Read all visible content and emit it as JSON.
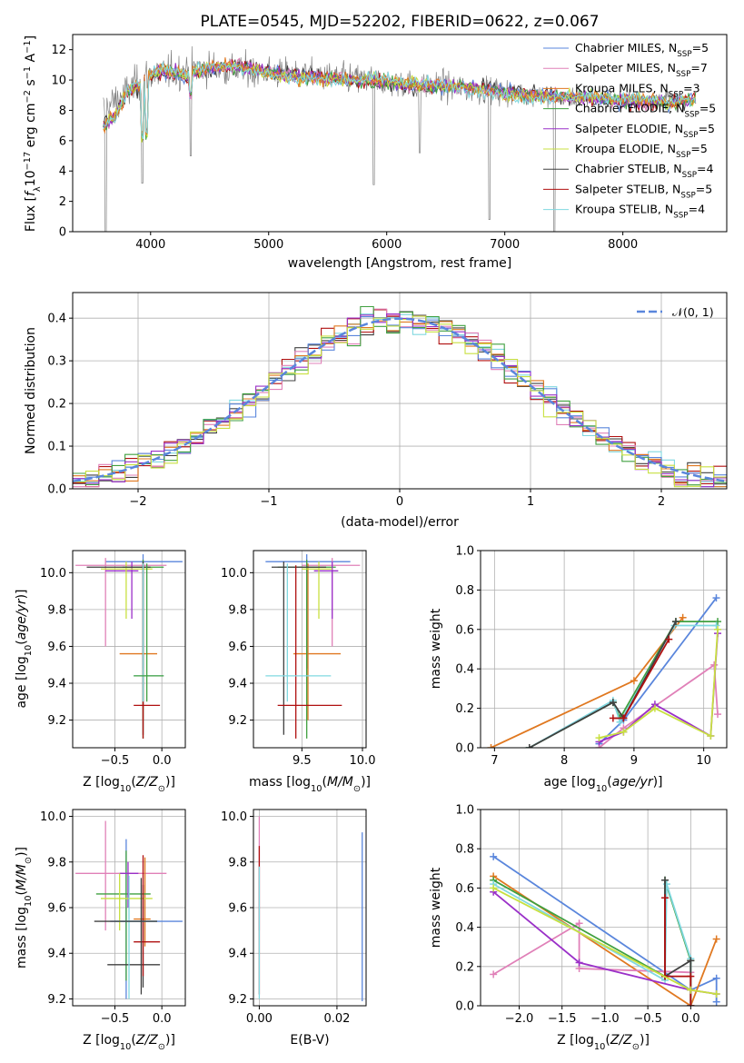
{
  "title": "PLATE=0545, MJD=52202, FIBERID=0622, z=0.067",
  "colors": {
    "data": "#808080",
    "c0": "#5a86dc",
    "c1": "#e080b8",
    "c2": "#e07820",
    "c3": "#40a040",
    "c4": "#9a30c8",
    "c5": "#c8e040",
    "c6": "#404040",
    "c7": "#b01010",
    "c8": "#80d8e0",
    "normal": "#5a86dc",
    "grid": "#b0b0b0"
  },
  "models": [
    {
      "name": "Chabrier MILES",
      "nssp": "5"
    },
    {
      "name": "Salpeter MILES",
      "nssp": "7"
    },
    {
      "name": "Kroupa MILES",
      "nssp": "3"
    },
    {
      "name": "Chabrier ELODIE",
      "nssp": "5"
    },
    {
      "name": "Salpeter ELODIE",
      "nssp": "5"
    },
    {
      "name": "Kroupa ELODIE",
      "nssp": "5"
    },
    {
      "name": "Chabrier STELIB",
      "nssp": "4"
    },
    {
      "name": "Salpeter STELIB",
      "nssp": "5"
    },
    {
      "name": "Kroupa STELIB",
      "nssp": "4"
    }
  ],
  "chart_data": [
    {
      "id": "spectrum",
      "type": "line",
      "xlabel": "wavelength [Angstrom, rest frame]",
      "ylabel": "Flux [f_λ10^-17 erg cm^-2 s^-1 A^-1]",
      "xlim": [
        3340,
        8880
      ],
      "ylim": [
        0,
        13
      ],
      "xticks": [
        4000,
        5000,
        6000,
        7000,
        8000
      ],
      "yticks": [
        0,
        2,
        4,
        6,
        8,
        10,
        12
      ],
      "grid": false,
      "legend": "top-right",
      "model_continuum": {
        "x": [
          3600,
          3700,
          3800,
          3900,
          4000,
          4100,
          4200,
          4300,
          4400,
          4500,
          4600,
          4700,
          4800,
          4900,
          5000,
          5200,
          5400,
          5600,
          5800,
          6000,
          6200,
          6400,
          6600,
          6800,
          7000,
          7200,
          7400,
          7600,
          7800,
          8000,
          8200,
          8400,
          8600
        ],
        "y": [
          7.0,
          7.6,
          9.2,
          9.6,
          10.4,
          10.6,
          10.5,
          10.2,
          10.6,
          10.8,
          10.9,
          10.9,
          10.8,
          10.7,
          10.5,
          10.3,
          10.2,
          10.0,
          10.0,
          9.9,
          9.7,
          9.6,
          9.6,
          9.4,
          9.2,
          9.0,
          8.9,
          8.9,
          8.8,
          8.6,
          8.6,
          8.5,
          8.7
        ]
      },
      "observed": {
        "x_range": [
          3600,
          8450
        ],
        "level": [
          [
            3600,
            8.0
          ],
          [
            4000,
            10.4
          ],
          [
            4500,
            10.8
          ],
          [
            5000,
            10.5
          ],
          [
            6000,
            9.9
          ],
          [
            7000,
            9.2
          ],
          [
            7500,
            8.8
          ]
        ],
        "noise_sd": [
          [
            3600,
            1.4
          ],
          [
            5000,
            1.1
          ],
          [
            6000,
            1.1
          ],
          [
            7000,
            1.0
          ],
          [
            7500,
            0.6
          ]
        ],
        "dips": [
          [
            3620,
            0.0
          ],
          [
            3930,
            3.2
          ],
          [
            4340,
            5.0
          ],
          [
            5890,
            3.1
          ],
          [
            6280,
            5.2
          ],
          [
            6870,
            0.8
          ],
          [
            7420,
            0.0
          ]
        ]
      }
    },
    {
      "id": "residuals",
      "type": "histogram",
      "xlabel": "(data-model)/error",
      "ylabel": "Normed distribution",
      "xlim": [
        -2.5,
        2.5
      ],
      "ylim": [
        0,
        0.46
      ],
      "xticks": [
        -2,
        -1,
        0,
        1,
        2
      ],
      "yticks": [
        0.0,
        0.1,
        0.2,
        0.3,
        0.4
      ],
      "grid": true,
      "legend": "top-right",
      "normal_label": "𝒩(0, 1)",
      "bin_width": 0.1
    },
    {
      "id": "age-vs-Z",
      "type": "scatter",
      "xlabel": "Z [log10(Z/Z⊙)]",
      "ylabel": "age [log10(age/yr)]",
      "xlim": [
        -0.95,
        0.25
      ],
      "ylim": [
        9.05,
        10.12
      ],
      "xticks": [
        -0.5,
        0.0
      ],
      "yticks": [
        9.2,
        9.4,
        9.6,
        9.8,
        10.0
      ],
      "grid": true,
      "points": [
        {
          "c": 0,
          "x": -0.2,
          "xe": [
            -0.6,
            0.22
          ],
          "y": 10.06,
          "ye": [
            9.48,
            10.1
          ]
        },
        {
          "c": 1,
          "x": -0.6,
          "xe": [
            -0.92,
            0.05
          ],
          "y": 10.04,
          "ye": [
            9.6,
            10.08
          ]
        },
        {
          "c": 2,
          "x": -0.2,
          "xe": [
            -0.45,
            -0.05
          ],
          "y": 9.56,
          "ye": [
            9.2,
            10.05
          ]
        },
        {
          "c": 3,
          "x": -0.2,
          "xe": [
            -0.42,
            0.02
          ],
          "y": 10.03,
          "ye": [
            9.1,
            10.07
          ]
        },
        {
          "c": 4,
          "x": -0.32,
          "xe": [
            -0.6,
            -0.25
          ],
          "y": 10.01,
          "ye": [
            9.75,
            10.06
          ]
        },
        {
          "c": 5,
          "x": -0.38,
          "xe": [
            -0.65,
            -0.1
          ],
          "y": 10.02,
          "ye": [
            9.75,
            10.06
          ]
        },
        {
          "c": 6,
          "x": -0.2,
          "xe": [
            -0.8,
            -0.12
          ],
          "y": 10.03,
          "ye": [
            9.12,
            10.06
          ]
        },
        {
          "c": 7,
          "x": -0.2,
          "xe": [
            -0.3,
            -0.02
          ],
          "y": 9.28,
          "ye": [
            9.1,
            10.04
          ]
        },
        {
          "c": 8,
          "x": -0.2,
          "xe": [
            -0.3,
            0.02
          ],
          "y": 9.44,
          "ye": [
            9.3,
            10.05
          ]
        },
        {
          "c": 3,
          "x": -0.16,
          "xe": [
            -0.3,
            0.02
          ],
          "y": 9.44,
          "ye": [
            9.3,
            10.05
          ]
        }
      ]
    },
    {
      "id": "age-vs-mass",
      "type": "scatter",
      "xlabel": "mass [log10(M/M⊙)]",
      "ylabel": "",
      "xlim": [
        9.1,
        10.03
      ],
      "ylim": [
        9.05,
        10.12
      ],
      "xticks": [
        9.5,
        10.0
      ],
      "yticks": [
        9.2,
        9.4,
        9.6,
        9.8,
        10.0
      ],
      "grid": true,
      "points": [
        {
          "c": 0,
          "x": 9.54,
          "xe": [
            9.2,
            9.9
          ],
          "y": 10.06,
          "ye": [
            9.48,
            10.1
          ]
        },
        {
          "c": 1,
          "x": 9.75,
          "xe": [
            9.5,
            9.98
          ],
          "y": 10.04,
          "ye": [
            9.6,
            10.08
          ]
        },
        {
          "c": 2,
          "x": 9.55,
          "xe": [
            9.43,
            9.82
          ],
          "y": 9.56,
          "ye": [
            9.2,
            10.05
          ]
        },
        {
          "c": 3,
          "x": 9.54,
          "xe": [
            9.3,
            9.78
          ],
          "y": 10.03,
          "ye": [
            9.1,
            10.07
          ]
        },
        {
          "c": 4,
          "x": 9.75,
          "xe": [
            9.6,
            9.8
          ],
          "y": 10.01,
          "ye": [
            9.75,
            10.06
          ]
        },
        {
          "c": 5,
          "x": 9.64,
          "xe": [
            9.5,
            9.75
          ],
          "y": 10.02,
          "ye": [
            9.75,
            10.06
          ]
        },
        {
          "c": 6,
          "x": 9.35,
          "xe": [
            9.25,
            9.7
          ],
          "y": 10.03,
          "ye": [
            9.12,
            10.06
          ]
        },
        {
          "c": 7,
          "x": 9.45,
          "xe": [
            9.3,
            9.83
          ],
          "y": 9.28,
          "ye": [
            9.1,
            10.04
          ]
        },
        {
          "c": 8,
          "x": 9.38,
          "xe": [
            9.2,
            9.74
          ],
          "y": 9.44,
          "ye": [
            9.3,
            10.05
          ]
        }
      ]
    },
    {
      "id": "weight-vs-age",
      "type": "line",
      "xlabel": "age [log10(age/yr)]",
      "ylabel": "mass weight",
      "xlim": [
        6.8,
        10.33
      ],
      "ylim": [
        0,
        1.0
      ],
      "xticks": [
        7,
        8,
        9,
        10
      ],
      "yticks": [
        0.0,
        0.2,
        0.4,
        0.6,
        0.8,
        1.0
      ],
      "grid": true,
      "series": [
        {
          "c": 2,
          "x": [
            6.95,
            9.0,
            9.7
          ],
          "y": [
            0.0,
            0.34,
            0.66
          ]
        },
        {
          "c": 0,
          "x": [
            8.5,
            8.85,
            10.18
          ],
          "y": [
            0.02,
            0.14,
            0.76
          ]
        },
        {
          "c": 1,
          "x": [
            8.5,
            8.85,
            10.15,
            10.2
          ],
          "y": [
            0.0,
            0.1,
            0.42,
            0.17
          ]
        },
        {
          "c": 3,
          "x": [
            7.5,
            8.7,
            8.8,
            9.6,
            10.2
          ],
          "y": [
            0.0,
            0.23,
            0.15,
            0.64,
            0.64
          ]
        },
        {
          "c": 8,
          "x": [
            7.5,
            8.7,
            8.8,
            9.58,
            10.18
          ],
          "y": [
            0.0,
            0.24,
            0.13,
            0.62,
            0.62
          ]
        },
        {
          "c": 6,
          "x": [
            7.5,
            8.7,
            8.85,
            9.6
          ],
          "y": [
            0.0,
            0.23,
            0.15,
            0.64
          ]
        },
        {
          "c": 7,
          "x": [
            8.7,
            8.85,
            9.5
          ],
          "y": [
            0.15,
            0.15,
            0.55
          ]
        },
        {
          "c": 4,
          "x": [
            8.5,
            8.85,
            9.3,
            10.1,
            10.2
          ],
          "y": [
            0.03,
            0.08,
            0.22,
            0.06,
            0.58
          ]
        },
        {
          "c": 5,
          "x": [
            8.5,
            8.85,
            9.3,
            10.1,
            10.2
          ],
          "y": [
            0.05,
            0.08,
            0.2,
            0.06,
            0.6
          ]
        }
      ]
    },
    {
      "id": "mass-vs-Z",
      "type": "scatter",
      "xlabel": "Z [log10(Z/Z⊙)]",
      "ylabel": "mass [log10(M/M⊙)]",
      "xlim": [
        -0.95,
        0.25
      ],
      "ylim": [
        9.17,
        10.03
      ],
      "xticks": [
        -0.5,
        0.0
      ],
      "yticks": [
        9.2,
        9.4,
        9.6,
        9.8,
        10.0
      ],
      "grid": true,
      "points": [
        {
          "c": 0,
          "x": -0.38,
          "xe": [
            -0.55,
            0.22
          ],
          "y": 9.54,
          "ye": [
            9.2,
            9.9
          ]
        },
        {
          "c": 1,
          "x": -0.6,
          "xe": [
            -0.92,
            0.05
          ],
          "y": 9.75,
          "ye": [
            9.5,
            9.98
          ]
        },
        {
          "c": 2,
          "x": -0.18,
          "xe": [
            -0.3,
            -0.12
          ],
          "y": 9.55,
          "ye": [
            9.43,
            9.82
          ]
        },
        {
          "c": 3,
          "x": -0.38,
          "xe": [
            -0.7,
            -0.12
          ],
          "y": 9.66,
          "ye": [
            9.28,
            9.85
          ]
        },
        {
          "c": 4,
          "x": -0.36,
          "xe": [
            -0.45,
            -0.25
          ],
          "y": 9.75,
          "ye": [
            9.6,
            9.8
          ]
        },
        {
          "c": 5,
          "x": -0.45,
          "xe": [
            -0.65,
            -0.1
          ],
          "y": 9.64,
          "ye": [
            9.5,
            9.75
          ]
        },
        {
          "c": 6,
          "x": -0.2,
          "xe": [
            -0.58,
            -0.02
          ],
          "y": 9.35,
          "ye": [
            9.25,
            9.7
          ]
        },
        {
          "c": 7,
          "x": -0.2,
          "xe": [
            -0.3,
            -0.02
          ],
          "y": 9.45,
          "ye": [
            9.3,
            9.83
          ]
        },
        {
          "c": 8,
          "x": -0.35,
          "xe": [
            -0.5,
            -0.05
          ],
          "y": 9.54,
          "ye": [
            9.2,
            9.74
          ]
        },
        {
          "c": 6,
          "x": -0.22,
          "xe": [
            -0.72,
            -0.05
          ],
          "y": 9.54,
          "ye": [
            9.22,
            9.73
          ]
        }
      ]
    },
    {
      "id": "mass-vs-EBV",
      "type": "scatter",
      "xlabel": "E(B-V)",
      "ylabel": "",
      "xlim": [
        -0.0015,
        0.0275
      ],
      "ylim": [
        9.17,
        10.03
      ],
      "xticks": [
        0.0,
        0.02
      ],
      "yticks": [
        9.2,
        9.4,
        9.6,
        9.8,
        10.0
      ],
      "grid": true,
      "points": [
        {
          "c": 1,
          "x": 0.0,
          "xe": [
            0.0,
            0.0
          ],
          "y": 9.75,
          "ye": [
            9.5,
            10.0
          ]
        },
        {
          "c": 7,
          "x": 0.0,
          "xe": [
            0.0,
            0.0
          ],
          "y": 9.45,
          "ye": [
            9.22,
            9.87
          ]
        },
        {
          "c": 8,
          "x": 0.0,
          "xe": [
            0.0,
            0.0
          ],
          "y": 9.5,
          "ye": [
            9.2,
            9.78
          ]
        },
        {
          "c": 0,
          "x": 0.0265,
          "xe": [
            0.0265,
            0.0265
          ],
          "y": 9.54,
          "ye": [
            9.19,
            9.93
          ]
        }
      ]
    },
    {
      "id": "weight-vs-Z",
      "type": "line",
      "xlabel": "Z [log10(Z/Z⊙)]",
      "ylabel": "mass weight",
      "xlim": [
        -2.45,
        0.42
      ],
      "ylim": [
        0,
        1.0
      ],
      "xticks": [
        -2.0,
        -1.5,
        -1.0,
        -0.5,
        0.0
      ],
      "yticks": [
        0.0,
        0.2,
        0.4,
        0.6,
        0.8,
        1.0
      ],
      "grid": true,
      "series": [
        {
          "c": 0,
          "x": [
            -2.3,
            0.0,
            0.3,
            0.3
          ],
          "y": [
            0.76,
            0.08,
            0.14,
            0.02
          ]
        },
        {
          "c": 2,
          "x": [
            -2.3,
            0.0,
            0.3
          ],
          "y": [
            0.66,
            0.0,
            0.34
          ]
        },
        {
          "c": 1,
          "x": [
            -2.3,
            -1.3,
            -1.3,
            0.0,
            0.0
          ],
          "y": [
            0.16,
            0.42,
            0.19,
            0.17,
            0.0
          ]
        },
        {
          "c": 3,
          "x": [
            -2.3,
            -0.3,
            -0.3,
            0.0,
            0.0
          ],
          "y": [
            0.64,
            0.15,
            0.64,
            0.23,
            0.0
          ]
        },
        {
          "c": 8,
          "x": [
            -2.3,
            -0.3,
            -0.28,
            0.0,
            0.0
          ],
          "y": [
            0.62,
            0.13,
            0.62,
            0.24,
            0.0
          ]
        },
        {
          "c": 6,
          "x": [
            -0.3,
            -0.3,
            0.0,
            0.0
          ],
          "y": [
            0.64,
            0.15,
            0.23,
            0.0
          ]
        },
        {
          "c": 7,
          "x": [
            -0.3,
            -0.3,
            0.0,
            0.0
          ],
          "y": [
            0.55,
            0.15,
            0.15,
            0.0
          ]
        },
        {
          "c": 4,
          "x": [
            -2.3,
            -1.3,
            0.0,
            0.3
          ],
          "y": [
            0.58,
            0.22,
            0.08,
            0.06
          ]
        },
        {
          "c": 5,
          "x": [
            -2.3,
            0.0,
            0.3
          ],
          "y": [
            0.6,
            0.08,
            0.06
          ]
        }
      ]
    }
  ]
}
